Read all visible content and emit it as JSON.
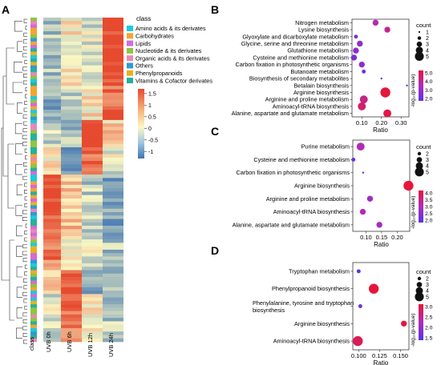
{
  "panel_letters": {
    "a": "A",
    "b": "B",
    "c": "C",
    "d": "D"
  },
  "heatmap": {
    "columns": [
      "class",
      "UVB 0h",
      "UVB 6h",
      "UVB 12h",
      "UVB 24h"
    ],
    "legend_title": "class",
    "classes": [
      {
        "name": "Amino acids & its derivates",
        "color": "#1ec8e0"
      },
      {
        "name": "Carbohydrates",
        "color": "#f3a531"
      },
      {
        "name": "Lipids",
        "color": "#d46ad6"
      },
      {
        "name": "Nucleotide & its derivates",
        "color": "#8dc63f"
      },
      {
        "name": "Organic acids & its derivates",
        "color": "#e888b8"
      },
      {
        "name": "Others",
        "color": "#2f9ad3"
      },
      {
        "name": "Phenylpropanoids",
        "color": "#e7b21f"
      },
      {
        "name": "Vitamins & Cofactor derivates",
        "color": "#27b09a"
      }
    ],
    "color_scale": {
      "ticks": [
        "1.5",
        "1",
        "0.5",
        "0",
        "-0.5",
        "-1"
      ],
      "low": "#3e74b2",
      "mid": "#fbf8c4",
      "high": "#e64a2f"
    }
  },
  "chart_data": [
    {
      "type": "scatter",
      "panel": "B",
      "categories": [
        "Nitrogen metabolism",
        "Lysine biosynthesis",
        "Glyoxylate and dicarboxylate metabolism",
        "Glycine, serine and threonine metabolism",
        "Glutathione metabolism",
        "Cysteine and methionine metabolism",
        "Carbon fixation in photosynthetic organisms",
        "Butanoate metabolism",
        "Biosynthesis of secondary metabolites",
        "Betalain biosynthesis",
        "Arginine biosynthesis",
        "Arginine and proline metabolism",
        "Aminoacyl-tRNA biosynthesis",
        "Alanine, aspartate and glutamate metabolism"
      ],
      "x": [
        0.17,
        0.23,
        0.07,
        0.09,
        0.07,
        0.06,
        0.1,
        0.11,
        0.2,
        0.33,
        0.22,
        0.11,
        0.1,
        0.23
      ],
      "count": [
        3,
        3,
        2,
        3,
        3,
        3,
        3,
        2,
        1,
        1,
        5,
        4,
        4,
        4
      ],
      "neglog10p": [
        3.5,
        4.0,
        2.0,
        2.6,
        2.6,
        2.2,
        2.5,
        2.0,
        1.5,
        1.5,
        5.2,
        4.1,
        4.5,
        5.0
      ],
      "xlabel": "Ratio",
      "xlim": [
        0.05,
        0.34
      ],
      "xticks": [
        "0.10",
        "0.20",
        "0.30"
      ],
      "size_legend": {
        "title": "count",
        "values": [
          "1",
          "2",
          "3",
          "4",
          "5"
        ]
      },
      "color_legend": {
        "title": "-log₁₀(p-value)",
        "ticks": [
          "5.0",
          "4.0",
          "3.0",
          "2.0"
        ],
        "range": [
          1.5,
          5.2
        ]
      }
    },
    {
      "type": "scatter",
      "panel": "C",
      "categories": [
        "Purine metabolism",
        "Cysteine and methionine metabolism",
        "Carbon fixation in photosynthetic organisms",
        "Arginine biosynthesis",
        "Arginine and proline metabolism",
        "Aminoacyl-tRNA biosynthesis",
        "Alanine, aspartate and glutamate metabolism"
      ],
      "x": [
        0.083,
        0.06,
        0.091,
        0.236,
        0.113,
        0.09,
        0.143
      ],
      "count": [
        4,
        2,
        1,
        5,
        3,
        3,
        3
      ],
      "neglog10p": [
        3.0,
        1.8,
        1.6,
        4.3,
        2.7,
        3.0,
        2.8
      ],
      "xlabel": "Ratio",
      "xlim": [
        0.058,
        0.24
      ],
      "xticks": [
        "0.10",
        "0.15",
        "0.20"
      ],
      "size_legend": {
        "title": "count",
        "values": [
          "2",
          "3",
          "4",
          "5"
        ]
      },
      "color_legend": {
        "title": "-log₁₀(p-value)",
        "ticks": [
          "4.0",
          "3.5",
          "3.0",
          "2.5",
          "2.0"
        ],
        "range": [
          1.6,
          4.3
        ]
      }
    },
    {
      "type": "scatter",
      "panel": "D",
      "categories": [
        "Tryptophan metabolism",
        "Phenylpropanoid biosynthesis",
        "Phenylalanine, tyrosine and tryptophan biosynthesis",
        "Arginine biosynthesis",
        "Aminoacyl-tRNA biosynthesis"
      ],
      "x": [
        0.1,
        0.118,
        0.102,
        0.154,
        0.099
      ],
      "count": [
        2,
        5,
        2,
        3,
        5
      ],
      "neglog10p": [
        1.3,
        3.2,
        1.5,
        3.2,
        3.0
      ],
      "xlabel": "Ratio",
      "xlim": [
        0.093,
        0.16
      ],
      "xticks": [
        "0.100",
        "0.125",
        "0.150"
      ],
      "size_legend": {
        "title": "count",
        "values": [
          "2",
          "3",
          "4",
          "5"
        ]
      },
      "color_legend": {
        "title": "-log₁₀(p-value)",
        "ticks": [
          "3.0",
          "2.5",
          "2.0",
          "1.5"
        ],
        "range": [
          1.3,
          3.2
        ]
      }
    }
  ]
}
